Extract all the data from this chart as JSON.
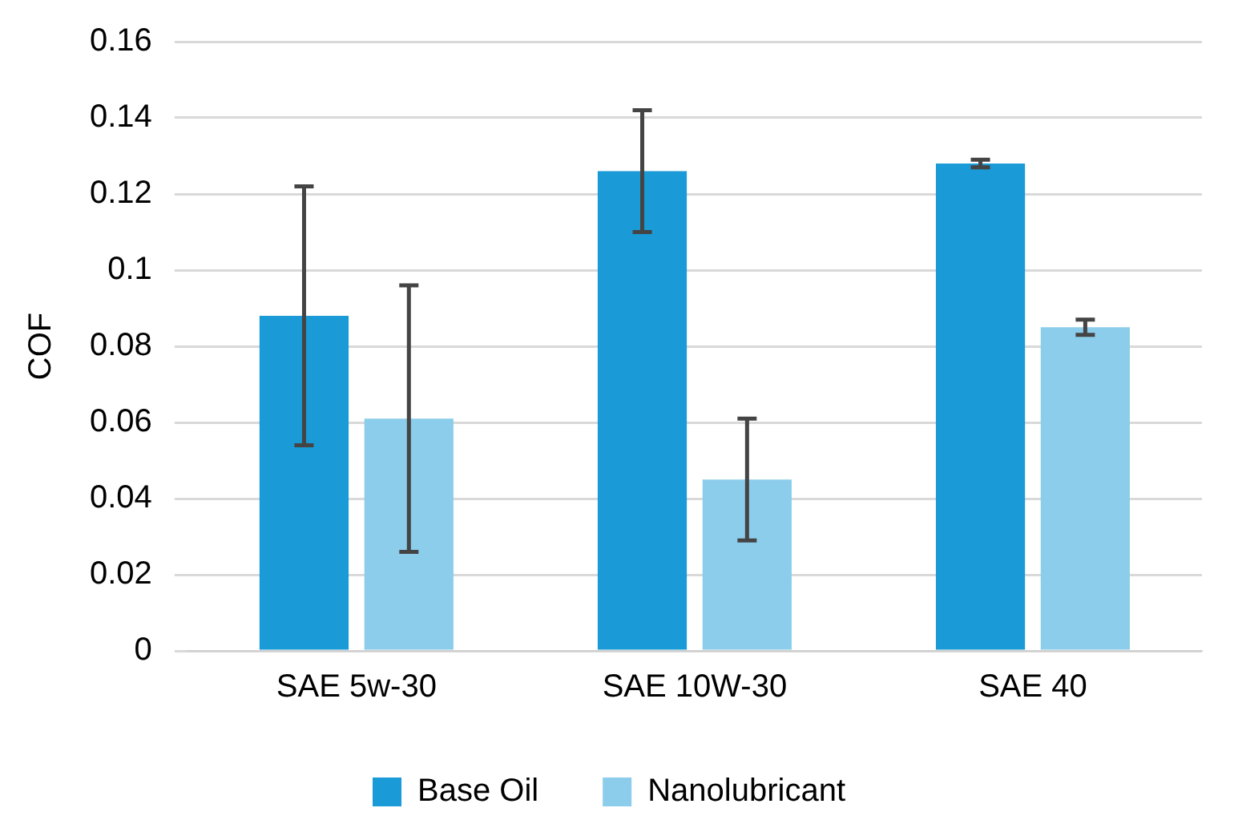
{
  "chart_data": {
    "type": "bar",
    "ylabel": "COF",
    "categories": [
      "SAE 5w-30",
      "SAE 10W-30",
      "SAE 40"
    ],
    "series": [
      {
        "name": "Base Oil",
        "color": "#1a9ad6",
        "values": [
          0.088,
          0.126,
          0.128
        ],
        "errors": [
          0.034,
          0.016,
          0.001
        ]
      },
      {
        "name": "Nanolubricant",
        "color": "#8ccdeb",
        "values": [
          0.061,
          0.045,
          0.085
        ],
        "errors": [
          0.035,
          0.016,
          0.002
        ]
      }
    ],
    "ylim": [
      0,
      0.16
    ],
    "yticks": [
      0,
      0.02,
      0.04,
      0.06,
      0.08,
      0.1,
      0.12,
      0.14,
      0.16
    ],
    "grid": "y",
    "legend": "bottom"
  }
}
